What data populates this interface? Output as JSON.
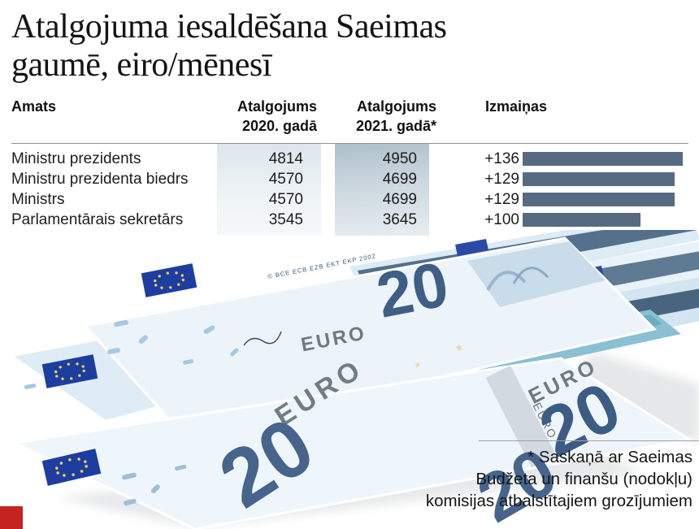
{
  "title": {
    "line1": "Atalgojuma iesaldēšana Saeimas",
    "line2": "gaumē, eiro/mēnesī"
  },
  "table": {
    "header": {
      "amats": "Amats",
      "y2020_l1": "Atalgojums",
      "y2020_l2": "2020. gadā",
      "y2021_l1": "Atalgojums",
      "y2021_l2": "2021. gadā*",
      "izmainas": "Izmaiņas"
    },
    "rows": [
      {
        "amats": "Ministru prezidents",
        "y2020": "4814",
        "y2021": "4950",
        "change": "+136"
      },
      {
        "amats": "Ministru prezidenta biedrs",
        "y2020": "4570",
        "y2021": "4699",
        "change": "+129"
      },
      {
        "amats": "Ministrs",
        "y2020": "4570",
        "y2021": "4699",
        "change": "+129"
      },
      {
        "amats": "Parlamentārais sekretārs",
        "y2020": "3545",
        "y2021": "3645",
        "change": "+100"
      }
    ]
  },
  "chart_data": {
    "type": "bar",
    "orientation": "horizontal",
    "title": "Atalgojuma iesaldēšana Saeimas gaumē, eiro/mēnesī",
    "categories": [
      "Ministru prezidents",
      "Ministru prezidenta biedrs",
      "Ministrs",
      "Parlamentārais sekretārs"
    ],
    "series": [
      {
        "name": "Atalgojums 2020. gadā",
        "values": [
          4814,
          4570,
          4570,
          3545
        ]
      },
      {
        "name": "Atalgojums 2021. gadā*",
        "values": [
          4950,
          4699,
          4699,
          3645
        ]
      },
      {
        "name": "Izmaiņas",
        "values": [
          136,
          129,
          129,
          100
        ]
      }
    ],
    "bar_value_labels": [
      "+136",
      "+129",
      "+129",
      "+100"
    ],
    "bar_axis_range": [
      0,
      140
    ],
    "grid": false,
    "legend": false
  },
  "footnote": {
    "line1": "* Saskaņā ar Saeimas",
    "line2": "Budžeta un finanšu (nodokļu)",
    "line3": "komisijas atbalstītajiem grozījumiem"
  },
  "banknotes": {
    "value": "20",
    "currency": "EURO",
    "microtext": "© BCE ECB EZB EKT EKP 2002"
  },
  "colors": {
    "bar": "#566b81",
    "band2020_top": "#dde6ec",
    "band2020_bottom": "#f5f8fa",
    "band2021_top": "#aebfcb",
    "band2021_bottom": "#e7edf1",
    "accent_red": "#c4231f",
    "note_numeral_blue": "#3f5e85",
    "flag_blue": "#1d3da0",
    "star_yellow": "#f2d14e"
  }
}
